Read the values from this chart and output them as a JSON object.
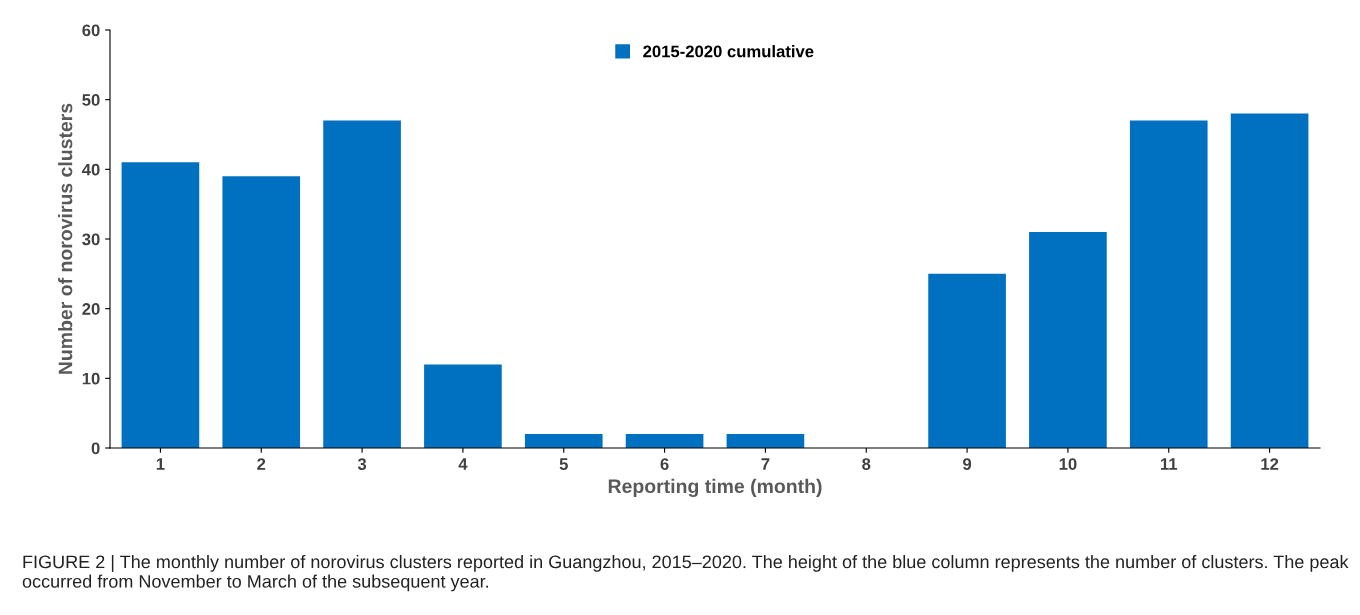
{
  "chart_data": {
    "type": "bar",
    "categories": [
      "1",
      "2",
      "3",
      "4",
      "5",
      "6",
      "7",
      "8",
      "9",
      "10",
      "11",
      "12"
    ],
    "series": [
      {
        "name": "2015-2020 cumulative",
        "color": "#0070c0",
        "values": [
          41,
          39,
          47,
          12,
          2,
          2,
          2,
          0,
          25,
          31,
          47,
          48
        ]
      }
    ],
    "xlabel": "Reporting time (month)",
    "ylabel": "Number of norovirus clusters",
    "ylim": [
      0,
      60
    ],
    "yticks": [
      0,
      10,
      20,
      30,
      40,
      50,
      60
    ],
    "grid": false,
    "legend": "top",
    "annotations": [
      "FIGURE 2 | The monthly number of norovirus clusters reported in Guangzhou, 2015–2020. The height of the blue column represents the number of clusters. The peak occurred from November to March of the subsequent year."
    ]
  }
}
